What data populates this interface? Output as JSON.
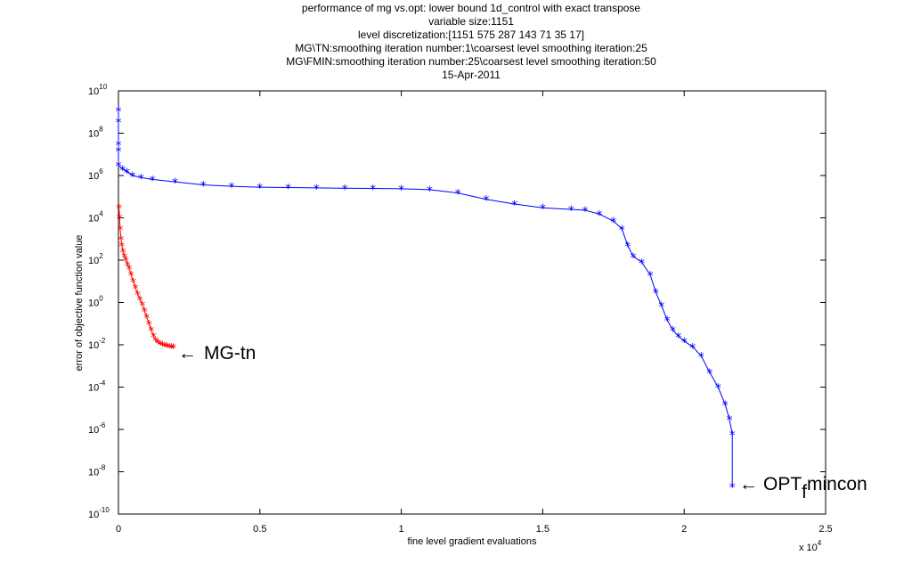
{
  "chart_data": {
    "type": "line",
    "title_lines": [
      "performance of mg vs.opt: lower bound 1d_control with exact transpose",
      "variable size:1151",
      "level discretization:[1151 575 287 143 71 35 17]",
      "MG\\TN:smoothing iteration number:1\\coarsest level smoothing iteration:25",
      "MG\\FMIN:smoothing iteration number:25\\coarsest level smoothing iteration:50",
      "15-Apr-2011"
    ],
    "xlabel": "fine level gradient evaluations",
    "ylabel": "error of objective function value",
    "x_multiplier": "x 10",
    "x_multiplier_exp": "4",
    "xlim": [
      0,
      25000
    ],
    "ylim": [
      1e-10,
      10000000000.0
    ],
    "yscale": "log",
    "x_ticks": [
      0,
      5000,
      10000,
      15000,
      20000,
      25000
    ],
    "x_tick_labels": [
      "0",
      "0.5",
      "1",
      "1.5",
      "2",
      "2.5"
    ],
    "y_tick_exponents": [
      "10",
      "8",
      "6",
      "4",
      "2",
      "0",
      "-2",
      "-4",
      "-6",
      "-8",
      "-10"
    ],
    "y_tick_base": "10",
    "grid": false,
    "marker": "*",
    "series": [
      {
        "name": "MG-tn",
        "color": "#ff0000",
        "points": [
          [
            20,
            30000.0
          ],
          [
            40,
            10000.0
          ],
          [
            60,
            3000.0
          ],
          [
            90,
            1000.0
          ],
          [
            120,
            500
          ],
          [
            160,
            250
          ],
          [
            210,
            150
          ],
          [
            260,
            100
          ],
          [
            320,
            60
          ],
          [
            380,
            40
          ],
          [
            450,
            20
          ],
          [
            520,
            10
          ],
          [
            600,
            5
          ],
          [
            680,
            2.5
          ],
          [
            760,
            1.4
          ],
          [
            840,
            0.8
          ],
          [
            920,
            0.4
          ],
          [
            1000,
            0.2
          ],
          [
            1080,
            0.1
          ],
          [
            1160,
            0.05
          ],
          [
            1240,
            0.025
          ],
          [
            1320,
            0.016
          ],
          [
            1400,
            0.013
          ],
          [
            1480,
            0.011
          ],
          [
            1560,
            0.01
          ],
          [
            1640,
            0.009
          ],
          [
            1720,
            0.0085
          ],
          [
            1800,
            0.008
          ],
          [
            1880,
            0.0077
          ],
          [
            1940,
            0.0075
          ]
        ]
      },
      {
        "name": "OPT_f mincon",
        "color": "#0000ff",
        "points": [
          [
            0,
            1200000000.0
          ],
          [
            0,
            350000000.0
          ],
          [
            0,
            30000000.0
          ],
          [
            0,
            15000000.0
          ],
          [
            0,
            3000000.0
          ],
          [
            150,
            2000000.0
          ],
          [
            300,
            1500000.0
          ],
          [
            500,
            1000000.0
          ],
          [
            800,
            800000.0
          ],
          [
            1200,
            650000.0
          ],
          [
            2000,
            500000.0
          ],
          [
            3000,
            360000.0
          ],
          [
            4000,
            310000.0
          ],
          [
            5000,
            280000.0
          ],
          [
            6000,
            270000.0
          ],
          [
            7000,
            260000.0
          ],
          [
            8000,
            250000.0
          ],
          [
            9000,
            245000.0
          ],
          [
            10000,
            235000.0
          ],
          [
            11000,
            215000.0
          ],
          [
            12000,
            150000.0
          ],
          [
            13000,
            75000.0
          ],
          [
            14000,
            45000.0
          ],
          [
            15000,
            30000.0
          ],
          [
            16000,
            25000.0
          ],
          [
            16500,
            23000.0
          ],
          [
            17000,
            15000.0
          ],
          [
            17500,
            7000.0
          ],
          [
            17800,
            3000.0
          ],
          [
            18000,
            500
          ],
          [
            18200,
            150
          ],
          [
            18500,
            80
          ],
          [
            18800,
            20
          ],
          [
            19000,
            3
          ],
          [
            19200,
            0.7
          ],
          [
            19400,
            0.15
          ],
          [
            19600,
            0.05
          ],
          [
            19800,
            0.025
          ],
          [
            20000,
            0.015
          ],
          [
            20300,
            0.008
          ],
          [
            20600,
            0.003
          ],
          [
            20900,
            0.0005
          ],
          [
            21200,
            0.0001
          ],
          [
            21450,
            1.5e-05
          ],
          [
            21600,
            3e-06
          ],
          [
            21700,
            6e-07
          ],
          [
            21700,
            2e-09
          ]
        ]
      }
    ],
    "annotations": [
      {
        "arrow": "←",
        "text": "MG-tn"
      },
      {
        "arrow": "←",
        "text": "OPT",
        "subscript": "f",
        "suffix": "mincon"
      }
    ]
  }
}
